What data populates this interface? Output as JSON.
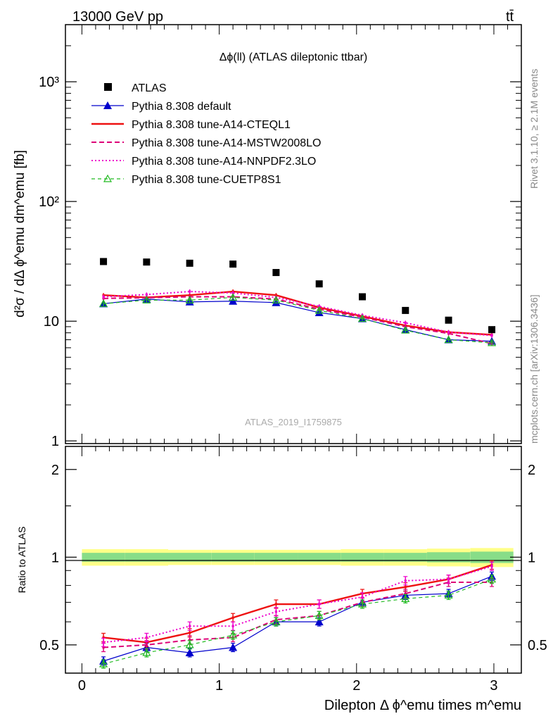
{
  "header": {
    "energy_label": "13000 GeV pp",
    "process_label": "tt̄"
  },
  "side_text": {
    "rivet": "Rivet 3.1.10, ≥ 2.1M events",
    "source": "mcplots.cern.ch [arXiv:1306.3436]"
  },
  "main_plot": {
    "title": "Δϕ(ll) (ATLAS dileptonic ttbar)",
    "watermark": "ATLAS_2019_I1759875",
    "ylabel": "d²σ / dΔ ϕ^emu dm^emu [fb]",
    "ytick_labels": [
      "1",
      "10",
      "10²",
      "10³"
    ]
  },
  "ratio_plot": {
    "ylabel": "Ratio to ATLAS",
    "ytick_labels": [
      "0.5",
      "1",
      "2"
    ]
  },
  "xaxis": {
    "label": "Dilepton Δ ϕ^emu times m^emu",
    "tick_labels": [
      "0",
      "1",
      "2",
      "3"
    ]
  },
  "legend": [
    {
      "label": "ATLAS",
      "color": "#000000",
      "style": "marker-square"
    },
    {
      "label": "Pythia 8.308 default",
      "color": "#0000cc",
      "style": "solid-triangle"
    },
    {
      "label": "Pythia 8.308 tune-A14-CTEQL1",
      "color": "#ee1111",
      "style": "solid-thick"
    },
    {
      "label": "Pythia 8.308 tune-A14-MSTW2008LO",
      "color": "#dd0077",
      "style": "dashed"
    },
    {
      "label": "Pythia 8.308 tune-A14-NNPDF2.3LO",
      "color": "#ee00cc",
      "style": "dotted"
    },
    {
      "label": "Pythia 8.308 tune-CUETP8S1",
      "color": "#22bb22",
      "style": "dashed-open-triangle"
    }
  ],
  "chart_data": {
    "type": "line",
    "xlim": [
      -0.12,
      3.2
    ],
    "main_ylim": [
      0.95,
      3000
    ],
    "main_yscale": "log",
    "ratio_ylim": [
      0.4,
      2.4
    ],
    "ratio_yscale": "log",
    "x": [
      0.157,
      0.471,
      0.785,
      1.1,
      1.414,
      1.728,
      2.042,
      2.356,
      2.67,
      2.985
    ],
    "data": {
      "name": "ATLAS",
      "values": [
        31.5,
        31.2,
        30.5,
        30.0,
        25.5,
        20.5,
        16.0,
        12.3,
        10.2,
        8.5
      ],
      "band_total": [
        0.065,
        0.065,
        0.06,
        0.06,
        0.06,
        0.06,
        0.065,
        0.065,
        0.07,
        0.075
      ],
      "band_stat": [
        0.035,
        0.035,
        0.035,
        0.035,
        0.035,
        0.035,
        0.035,
        0.035,
        0.04,
        0.045
      ]
    },
    "series": [
      {
        "name": "Pythia 8.308 default",
        "color": "#0000cc",
        "values": [
          14.0,
          15.3,
          14.5,
          14.7,
          14.3,
          11.8,
          10.5,
          8.5,
          7.0,
          6.8
        ],
        "ratio": [
          0.44,
          0.49,
          0.47,
          0.49,
          0.6,
          0.6,
          0.7,
          0.74,
          0.75,
          0.86
        ]
      },
      {
        "name": "Pythia 8.308 tune-A14-CTEQL1",
        "color": "#ee1111",
        "values": [
          16.5,
          15.8,
          16.5,
          17.7,
          16.5,
          13.0,
          11.0,
          9.2,
          8.1,
          7.7
        ],
        "ratio": [
          0.53,
          0.51,
          0.55,
          0.62,
          0.69,
          0.69,
          0.75,
          0.79,
          0.84,
          0.94
        ]
      },
      {
        "name": "Pythia 8.308 tune-A14-MSTW2008LO",
        "color": "#dd0077",
        "values": [
          15.5,
          15.7,
          16.0,
          16.0,
          15.3,
          12.6,
          10.8,
          9.0,
          7.9,
          6.5
        ],
        "ratio": [
          0.49,
          0.5,
          0.52,
          0.53,
          0.61,
          0.63,
          0.7,
          0.75,
          0.82,
          0.82
        ]
      },
      {
        "name": "Pythia 8.308 tune-A14-NNPDF2.3LO",
        "color": "#ee00cc",
        "values": [
          16.0,
          16.7,
          17.7,
          17.2,
          15.8,
          13.3,
          11.2,
          9.7,
          8.1,
          7.6
        ],
        "ratio": [
          0.51,
          0.53,
          0.58,
          0.58,
          0.65,
          0.69,
          0.73,
          0.83,
          0.84,
          0.93
        ]
      },
      {
        "name": "Pythia 8.308 tune-CUETP8S1",
        "color": "#22bb22",
        "values": [
          14.0,
          15.0,
          15.0,
          15.8,
          15.0,
          12.3,
          10.5,
          8.4,
          7.0,
          6.6
        ],
        "ratio": [
          0.43,
          0.47,
          0.5,
          0.54,
          0.6,
          0.63,
          0.69,
          0.72,
          0.74,
          0.84
        ]
      }
    ]
  }
}
